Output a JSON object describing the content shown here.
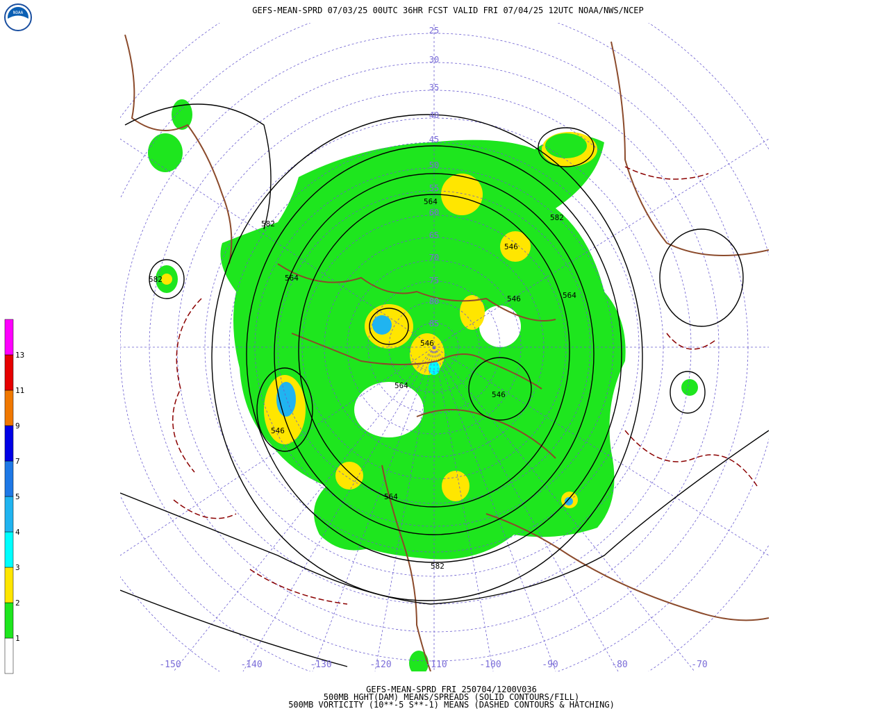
{
  "header": {
    "title": "GEFS-MEAN-SPRD 07/03/25 00UTC 36HR FCST VALID FRI 07/04/25 12UTC NOAA/NWS/NCEP"
  },
  "footer": {
    "lines": [
      "GEFS-MEAN-SPRD FRI 250704/1200V036",
      "500MB HGHT(DAM) MEANS/SPREADS (SOLID CONTOURS/FILL)",
      "500MB VORTICITY (10**-5 S**-1) MEANS (DASHED CONTOURS & HATCHING)"
    ]
  },
  "colorbar": {
    "levels": [
      1,
      2,
      3,
      4,
      5,
      7,
      9,
      11,
      13
    ],
    "colors": [
      "#ffffff",
      "#1ee61e",
      "#ffe600",
      "#00ffff",
      "#20b4f0",
      "#1e78e6",
      "#0000e6",
      "#f07800",
      "#e60000",
      "#ff00ff"
    ]
  },
  "map": {
    "lat_labels": [
      "25",
      "30",
      "35",
      "40",
      "45",
      "50",
      "55",
      "60",
      "65",
      "70",
      "75",
      "80",
      "85"
    ],
    "lon_labels": [
      "-150",
      "-140",
      "-130",
      "-120",
      "-110",
      "-100",
      "-90",
      "-80",
      "-70"
    ],
    "contour_labels": [
      "582",
      "582",
      "582",
      "582",
      "564",
      "564",
      "564",
      "564",
      "564",
      "546",
      "546",
      "546",
      "546",
      "546"
    ]
  }
}
